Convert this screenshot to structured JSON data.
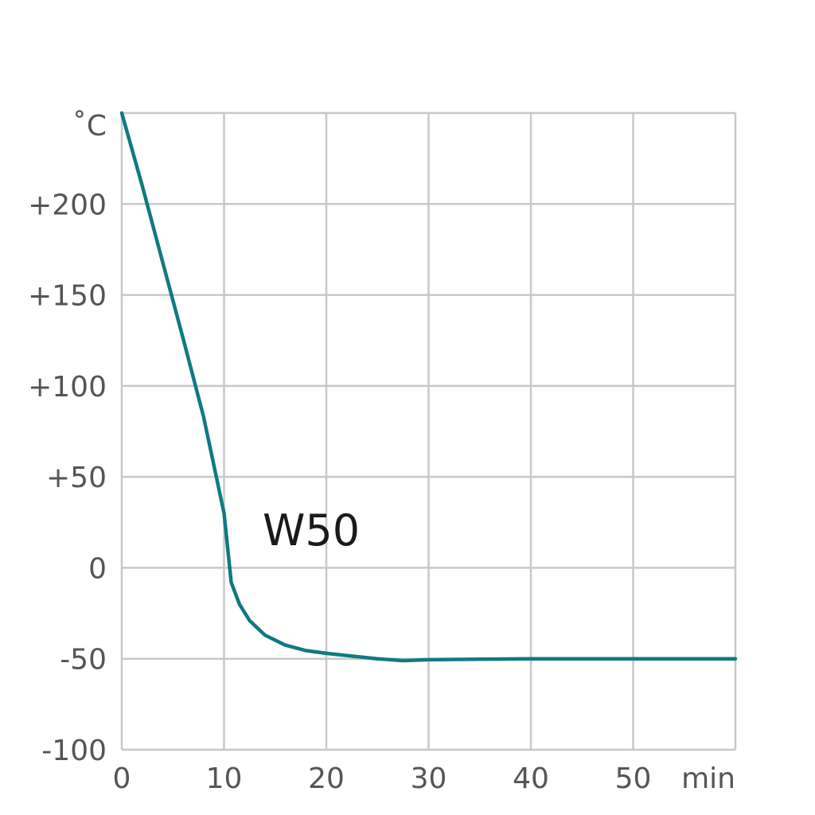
{
  "chart_data": {
    "type": "line",
    "title": "",
    "x_unit": "min",
    "y_unit": "˚C",
    "xlim": [
      0,
      60
    ],
    "ylim": [
      -100,
      250
    ],
    "x_ticks": [
      0,
      10,
      20,
      30,
      40,
      50
    ],
    "x_tick_labels": [
      "0",
      "10",
      "20",
      "30",
      "40",
      "50"
    ],
    "y_ticks": [
      -100,
      -50,
      0,
      50,
      100,
      150,
      200
    ],
    "y_tick_labels": [
      "-100",
      "-50",
      "0",
      "+50",
      "+100",
      "+150",
      "+200"
    ],
    "grid": true,
    "annotation": "W50",
    "series": [
      {
        "color": "#0f7a80",
        "points": [
          [
            0,
            250
          ],
          [
            2,
            210
          ],
          [
            4,
            168
          ],
          [
            6,
            126
          ],
          [
            8,
            83
          ],
          [
            10,
            30
          ],
          [
            10.7,
            -8
          ],
          [
            11.5,
            -20
          ],
          [
            12.5,
            -29
          ],
          [
            14,
            -37
          ],
          [
            16,
            -42.5
          ],
          [
            18,
            -45.5
          ],
          [
            20,
            -47
          ],
          [
            22.5,
            -48.5
          ],
          [
            25,
            -50
          ],
          [
            27.5,
            -51
          ],
          [
            30,
            -50.5
          ],
          [
            35,
            -50.2
          ],
          [
            40,
            -50
          ],
          [
            50,
            -50
          ],
          [
            60,
            -50
          ]
        ]
      }
    ]
  }
}
